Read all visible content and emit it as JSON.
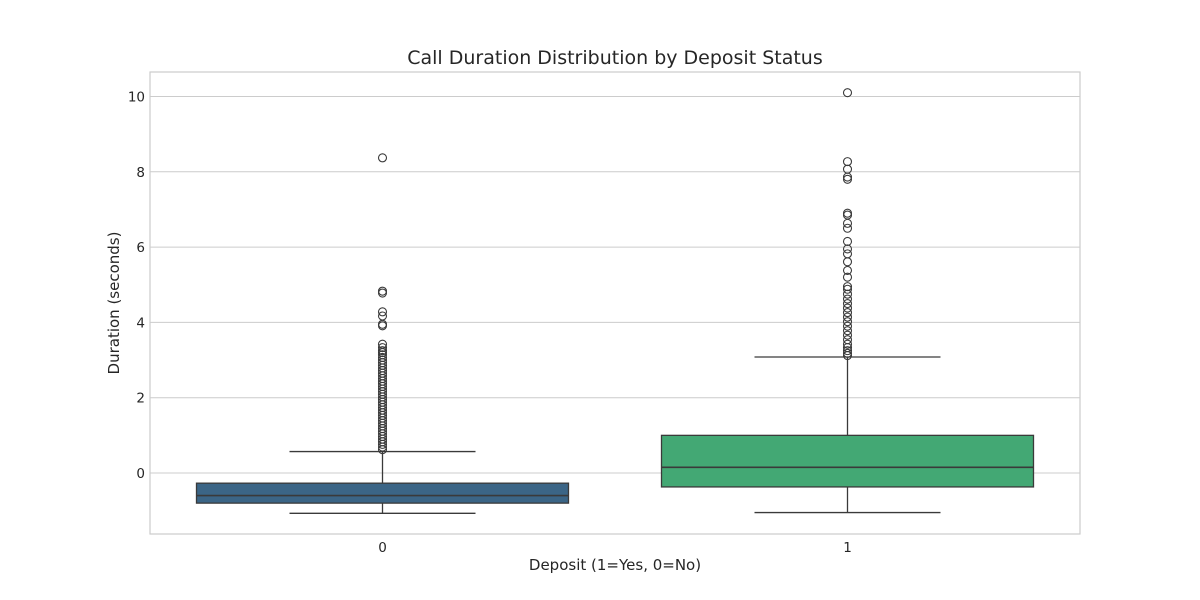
{
  "chart_data": {
    "type": "box",
    "title": "Call Duration Distribution by Deposit Status",
    "xlabel": "Deposit (1=Yes, 0=No)",
    "ylabel": "Duration (seconds)",
    "categories": [
      "0",
      "1"
    ],
    "ylim": [
      -1.62,
      10.65
    ],
    "yticks": [
      0,
      2,
      4,
      6,
      8,
      10
    ],
    "grid": true,
    "colors": [
      "#3b6586",
      "#43a874"
    ],
    "boxes": [
      {
        "category": "0",
        "whisker_low": -1.07,
        "q1": -0.8,
        "median": -0.6,
        "q3": -0.27,
        "whisker_high": 0.57,
        "outliers": [
          8.37,
          4.83,
          4.78,
          4.28,
          4.17,
          3.95,
          3.91,
          3.42,
          3.33,
          3.25,
          3.2,
          3.14,
          3.07,
          3.0,
          2.93,
          2.86,
          2.79,
          2.72,
          2.65,
          2.58,
          2.51,
          2.44,
          2.37,
          2.3,
          2.23,
          2.16,
          2.09,
          2.02,
          1.95,
          1.88,
          1.81,
          1.74,
          1.67,
          1.6,
          1.53,
          1.46,
          1.39,
          1.32,
          1.25,
          1.18,
          1.11,
          1.04,
          0.97,
          0.9,
          0.83,
          0.76,
          0.69,
          0.62
        ]
      },
      {
        "category": "1",
        "whisker_low": -1.05,
        "q1": -0.37,
        "median": 0.15,
        "q3": 1.0,
        "whisker_high": 3.08,
        "outliers": [
          10.1,
          8.27,
          8.07,
          7.86,
          7.8,
          6.9,
          6.85,
          6.63,
          6.5,
          6.15,
          5.95,
          5.82,
          5.61,
          5.38,
          5.2,
          4.95,
          4.88,
          4.75,
          4.62,
          4.5,
          4.38,
          4.26,
          4.14,
          4.02,
          3.9,
          3.78,
          3.66,
          3.54,
          3.42,
          3.33,
          3.25,
          3.18,
          3.12
        ]
      }
    ]
  }
}
